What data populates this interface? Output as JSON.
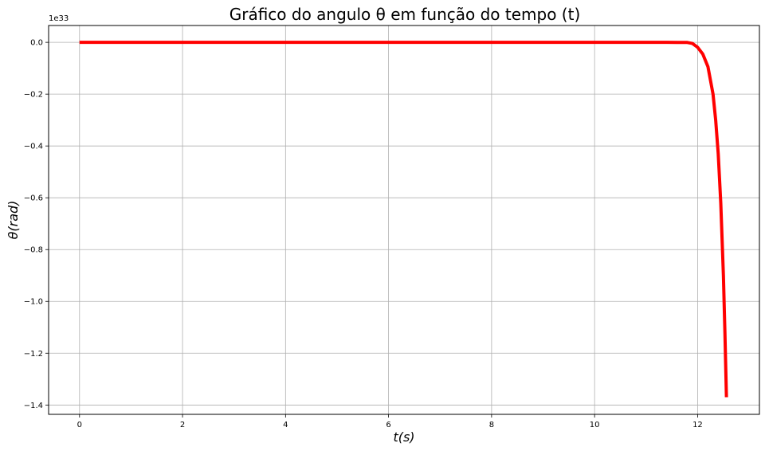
{
  "chart_data": {
    "type": "line",
    "title": "Gráfico do angulo θ em função do tempo (t)",
    "xlabel": "t(s)",
    "ylabel": "θ(rad)",
    "y_offset_label": "1e33",
    "xlim": [
      -0.6,
      13.2
    ],
    "ylim": [
      -1.436,
      0.065
    ],
    "x_ticks": [
      0,
      2,
      4,
      6,
      8,
      10,
      12
    ],
    "x_tick_labels": [
      "0",
      "2",
      "4",
      "6",
      "8",
      "10",
      "12"
    ],
    "y_ticks": [
      0.0,
      -0.2,
      -0.4,
      -0.6,
      -0.8,
      -1.0,
      -1.2,
      -1.4
    ],
    "y_tick_labels": [
      "0.0",
      "−0.2",
      "−0.4",
      "−0.6",
      "−0.8",
      "−1.0",
      "−1.2",
      "−1.4"
    ],
    "grid": true,
    "series": [
      {
        "color": "#ff0000",
        "x": [
          0,
          2,
          4,
          6,
          8,
          10,
          11,
          11.4,
          11.6,
          11.8,
          11.9,
          12.0,
          12.1,
          12.2,
          12.3,
          12.35,
          12.4,
          12.45,
          12.5,
          12.53,
          12.56
        ],
        "y": [
          0,
          0,
          0,
          0,
          0,
          0,
          0,
          -2e-05,
          -0.0001,
          -0.0004,
          -0.0044,
          -0.019,
          -0.045,
          -0.094,
          -0.2,
          -0.3,
          -0.43,
          -0.62,
          -0.9,
          -1.12,
          -1.37
        ]
      }
    ]
  }
}
